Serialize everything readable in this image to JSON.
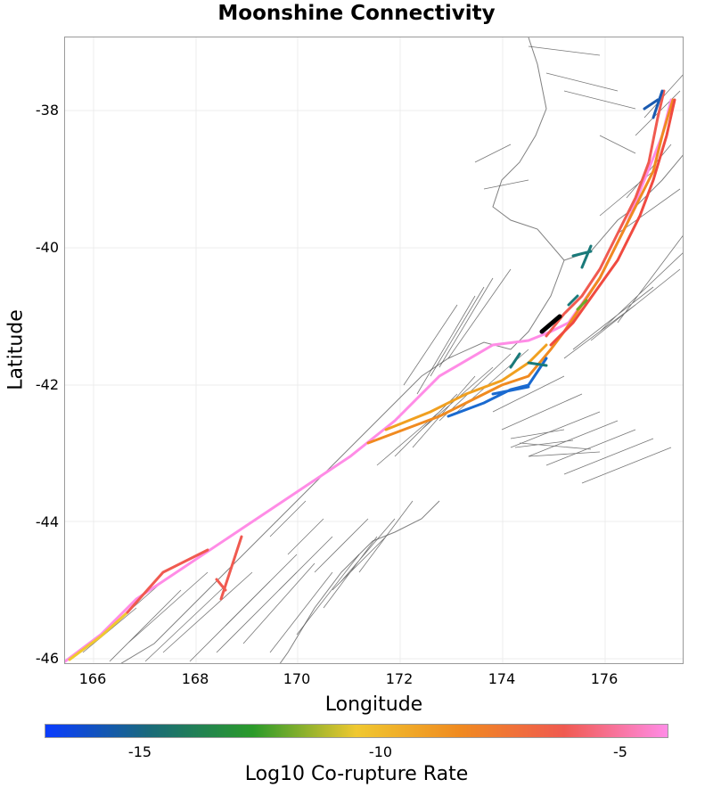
{
  "title": "Moonshine Connectivity",
  "x_axis": {
    "label": "Longitude",
    "ticks": [
      "166",
      "168",
      "170",
      "172",
      "174",
      "176"
    ]
  },
  "y_axis": {
    "label": "Latitude",
    "ticks": [
      "-38",
      "-40",
      "-42",
      "-44",
      "-46"
    ]
  },
  "colorbar": {
    "label": "Log10 Co-rupture Rate",
    "ticks": [
      "-15",
      "-10",
      "-5"
    ],
    "colors": [
      "#0a3cff",
      "#1a6a7a",
      "#2a9a2a",
      "#f0c830",
      "#f08a20",
      "#f05a50",
      "#ff8ce6"
    ]
  },
  "map": {
    "lon_range": [
      165.5,
      177.5
    ],
    "lat_range": [
      -46.1,
      -36.9
    ],
    "background_faults_color": "#555555",
    "coastline_color": "#777777",
    "grid": true
  }
}
